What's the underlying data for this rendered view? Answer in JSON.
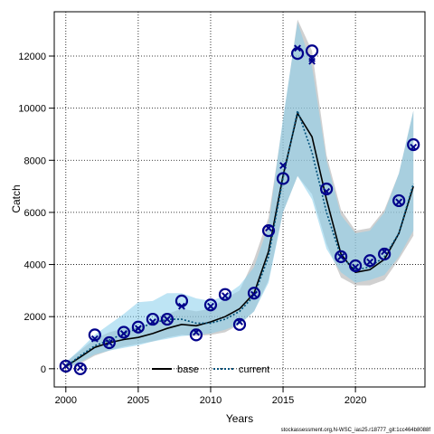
{
  "chart_data": {
    "type": "line",
    "xlabel": "Years",
    "ylabel": "Catch",
    "xlim": [
      1999.2,
      2024.8
    ],
    "ylim": [
      -700,
      13700
    ],
    "x_ticks": [
      2000,
      2005,
      2010,
      2015,
      2020
    ],
    "y_ticks": [
      0,
      2000,
      4000,
      6000,
      8000,
      10000,
      12000
    ],
    "grid": true,
    "legend_position": "bottom-center",
    "years": [
      2000,
      2001,
      2002,
      2003,
      2004,
      2005,
      2006,
      2007,
      2008,
      2009,
      2010,
      2011,
      2012,
      2013,
      2014,
      2015,
      2016,
      2017,
      2018,
      2019,
      2020,
      2021,
      2022,
      2023,
      2024
    ],
    "observed": [
      100,
      0,
      1300,
      1000,
      1400,
      1600,
      1900,
      1900,
      2600,
      1300,
      2450,
      2850,
      1700,
      2900,
      5300,
      7300,
      12100,
      12200,
      6900,
      4300,
      3950,
      4150,
      4400,
      6450,
      8600
    ],
    "series": [
      {
        "name": "base",
        "color": "#000000",
        "band_color": "#a9a9a9",
        "predicted": [
          100,
          50,
          1150,
          1000,
          1350,
          1550,
          1800,
          1900,
          2400,
          1400,
          2400,
          2800,
          1800,
          2850,
          5400,
          7800,
          12300,
          11900,
          6800,
          4300,
          3900,
          4100,
          4500,
          6400,
          8500
        ],
        "median": [
          80,
          450,
          820,
          1000,
          1120,
          1200,
          1350,
          1550,
          1700,
          1650,
          1800,
          2000,
          2300,
          2900,
          4500,
          7400,
          9800,
          8900,
          6500,
          4400,
          3700,
          3800,
          4200,
          5200,
          7000
        ],
        "lower": [
          30,
          200,
          500,
          700,
          850,
          950,
          1050,
          1200,
          1300,
          1250,
          1300,
          1400,
          1700,
          2200,
          3400,
          6000,
          7400,
          6700,
          4800,
          3500,
          3200,
          3200,
          3400,
          4200,
          5100
        ],
        "upper": [
          250,
          700,
          1150,
          1400,
          1550,
          1600,
          1800,
          2100,
          2300,
          2200,
          2300,
          2700,
          3000,
          4200,
          5800,
          9500,
          13400,
          12200,
          8200,
          6100,
          5300,
          5400,
          6100,
          7500,
          9900
        ]
      },
      {
        "name": "current",
        "color": "#00507a",
        "band_color": "#87ceeb",
        "predicted": [
          100,
          50,
          1150,
          1000,
          1350,
          1550,
          1800,
          1900,
          2400,
          1400,
          2400,
          2800,
          1800,
          2850,
          5400,
          7800,
          12300,
          11800,
          6800,
          4300,
          3900,
          4100,
          4500,
          6400,
          8500
        ],
        "median": [
          80,
          500,
          880,
          1100,
          1350,
          1550,
          1750,
          1900,
          1900,
          1750,
          1750,
          1900,
          2200,
          2800,
          4300,
          7300,
          9900,
          8300,
          6000,
          4300,
          3800,
          3900,
          4300,
          5200,
          7100
        ],
        "lower": [
          30,
          250,
          550,
          700,
          800,
          900,
          1050,
          1150,
          1250,
          1300,
          1350,
          1500,
          1700,
          2200,
          3300,
          6000,
          7400,
          6500,
          4600,
          3700,
          3300,
          3400,
          3600,
          4300,
          5300
        ],
        "upper": [
          250,
          750,
          1300,
          1700,
          2100,
          2550,
          2600,
          2900,
          2900,
          2700,
          2600,
          2800,
          3200,
          3900,
          5500,
          9600,
          13300,
          11600,
          8000,
          5900,
          5200,
          5300,
          6000,
          7500,
          9900
        ]
      }
    ]
  },
  "legend": {
    "base_label": "base",
    "current_label": "current"
  },
  "footer": {
    "source": "stockassessment.org,N-WSC_ias25.r18777_git:1cc464b8088f"
  },
  "colors": {
    "observed_marker": "#00008b",
    "grid": "#000000"
  }
}
